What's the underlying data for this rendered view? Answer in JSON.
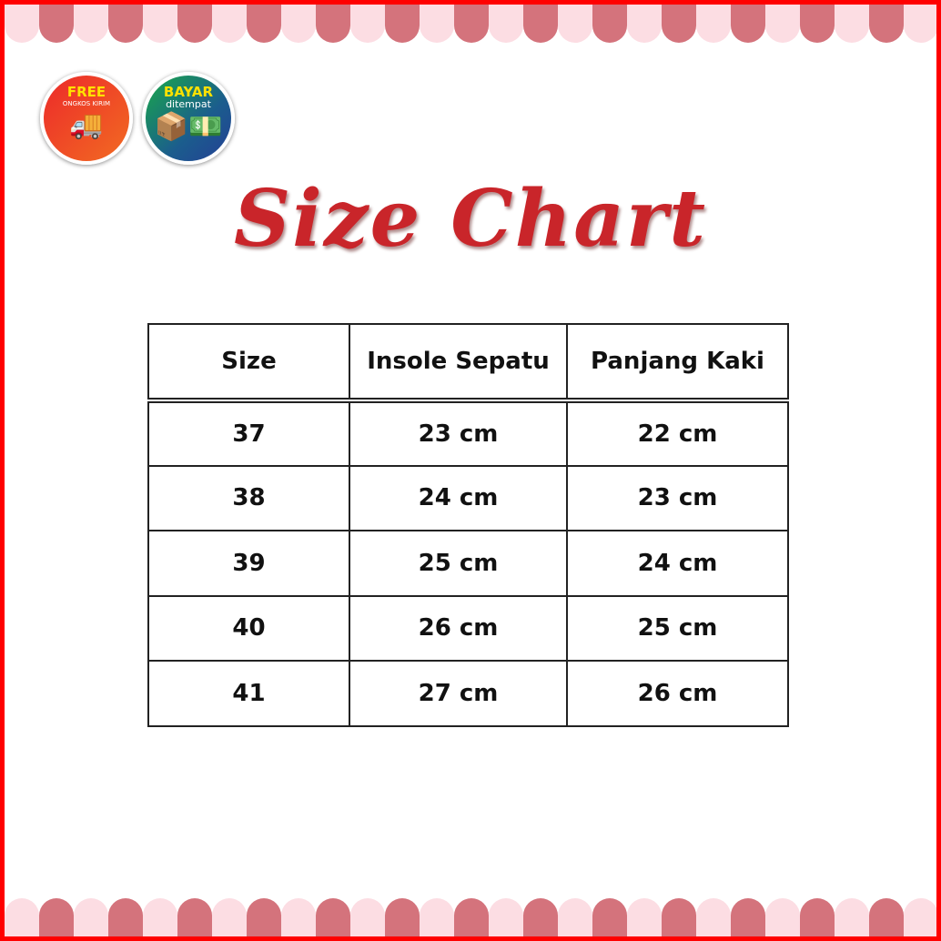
{
  "badges": [
    {
      "title": "FREE",
      "subtitle": "ONGKOS KIRIM",
      "icon": "delivery-truck-icon",
      "icon_text": "FREE"
    },
    {
      "title": "BAYAR",
      "subtitle": "ditempat",
      "icon": "cash-on-delivery-icon"
    }
  ],
  "title": "Size Chart",
  "colors": {
    "border": "#ff0000",
    "scallop_light": "#fcdde3",
    "scallop_dark": "#d4737c",
    "title": "#c9252a"
  },
  "table": {
    "headers": [
      "Size",
      "Insole Sepatu",
      "Panjang Kaki"
    ],
    "rows": [
      [
        "37",
        "23 cm",
        "22 cm"
      ],
      [
        "38",
        "24 cm",
        "23 cm"
      ],
      [
        "39",
        "25 cm",
        "24 cm"
      ],
      [
        "40",
        "26 cm",
        "25 cm"
      ],
      [
        "41",
        "27 cm",
        "26 cm"
      ]
    ]
  }
}
